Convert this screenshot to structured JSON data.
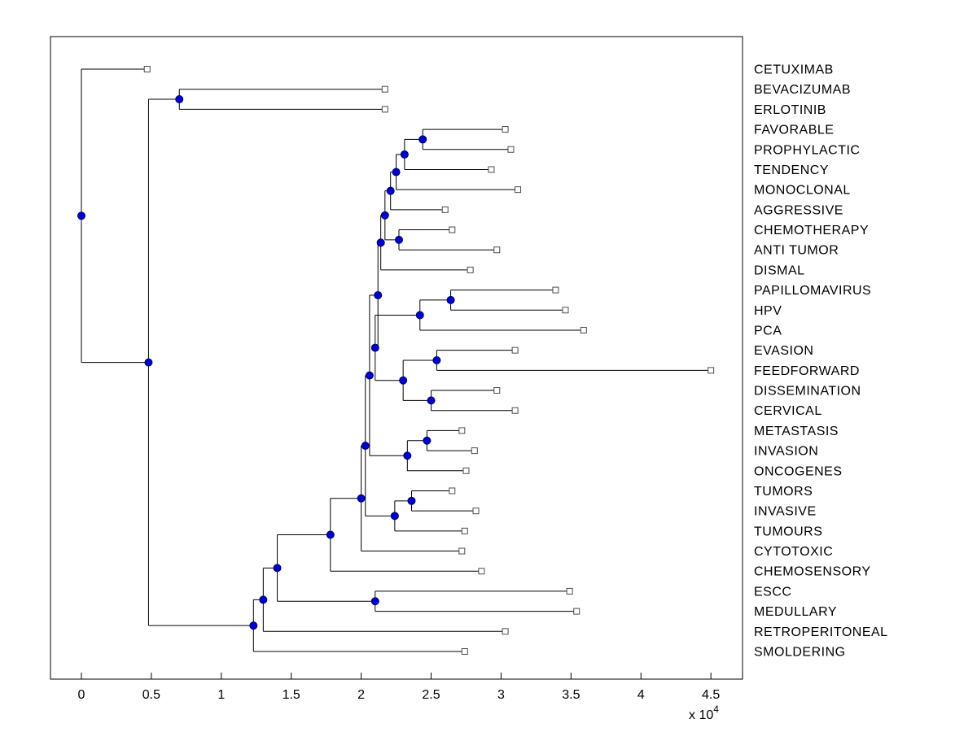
{
  "figure": {
    "background": "#ffffff",
    "kind": "matlab-phytree-dendrogram"
  },
  "chart_data": {
    "type": "dendrogram",
    "orientation": "left-to-right",
    "title": "",
    "x_axis": {
      "domain": [
        -0.221,
        4.726
      ],
      "ticks": [
        0,
        0.5,
        1,
        1.5,
        2,
        2.5,
        3,
        3.5,
        4,
        4.5
      ],
      "tick_labels": [
        "0",
        "0.5",
        "1",
        "1.5",
        "2",
        "2.5",
        "3",
        "3.5",
        "4",
        "4.5"
      ],
      "exponent_prefix": "x 10",
      "exponent": "4",
      "scale_factor": 10000
    },
    "leaf_labels": [
      "CETUXIMAB",
      "BEVACIZUMAB",
      "ERLOTINIB",
      "FAVORABLE",
      "PROPHYLACTIC",
      "TENDENCY",
      "MONOCLONAL",
      "AGGRESSIVE",
      "CHEMOTHERAPY",
      "ANTI TUMOR",
      "DISMAL",
      "PAPILLOMAVIRUS",
      "HPV",
      "PCA",
      "EVASION",
      "FEEDFORWARD",
      "DISSEMINATION",
      "CERVICAL",
      "METASTASIS",
      "INVASION",
      "ONCOGENES",
      "TUMORS",
      "INVASIVE",
      "TUMOURS",
      "CYTOTOXIC",
      "CHEMOSENSORY",
      "ESCC",
      "MEDULLARY",
      "RETROPERITONEAL",
      "SMOLDERING"
    ],
    "tree": {
      "x": 0.0,
      "children": [
        {
          "name": "CETUXIMAB",
          "x": 0.47
        },
        {
          "x": 0.48,
          "children": [
            {
              "x": 0.7,
              "children": [
                {
                  "name": "BEVACIZUMAB",
                  "x": 2.17
                },
                {
                  "name": "ERLOTINIB",
                  "x": 2.17
                }
              ]
            },
            {
              "x": 1.23,
              "children": [
                {
                  "x": 1.3,
                  "children": [
                    {
                      "x": 1.4,
                      "children": [
                        {
                          "x": 1.78,
                          "children": [
                            {
                              "x": 2.0,
                              "children": [
                                {
                                  "x": 2.03,
                                  "children": [
                                    {
                                      "x": 2.06,
                                      "children": [
                                        {
                                          "x": 2.12,
                                          "children": [
                                            {
                                              "x": 2.14,
                                              "children": [
                                                {
                                                  "x": 2.17,
                                                  "children": [
                                                    {
                                                      "x": 2.21,
                                                      "children": [
                                                        {
                                                          "x": 2.25,
                                                          "children": [
                                                            {
                                                              "x": 2.31,
                                                              "children": [
                                                                {
                                                                  "x": 2.44,
                                                                  "children": [
                                                                    {
                                                                      "name": "FAVORABLE",
                                                                      "x": 3.03
                                                                    },
                                                                    {
                                                                      "name": "PROPHYLACTIC",
                                                                      "x": 3.07
                                                                    }
                                                                  ]
                                                                },
                                                                {
                                                                  "name": "TENDENCY",
                                                                  "x": 2.93
                                                                }
                                                              ]
                                                            },
                                                            {
                                                              "name": "MONOCLONAL",
                                                              "x": 3.12
                                                            }
                                                          ]
                                                        },
                                                        {
                                                          "name": "AGGRESSIVE",
                                                          "x": 2.6
                                                        }
                                                      ]
                                                    },
                                                    {
                                                      "x": 2.27,
                                                      "children": [
                                                        {
                                                          "name": "CHEMOTHERAPY",
                                                          "x": 2.65
                                                        },
                                                        {
                                                          "name": "ANTI TUMOR",
                                                          "x": 2.97
                                                        }
                                                      ]
                                                    }
                                                  ]
                                                },
                                                {
                                                  "name": "DISMAL",
                                                  "x": 2.78
                                                }
                                              ]
                                            },
                                            {
                                              "x": 2.1,
                                              "children": [
                                                {
                                                  "x": 2.42,
                                                  "children": [
                                                    {
                                                      "x": 2.64,
                                                      "children": [
                                                        {
                                                          "name": "PAPILLOMAVIRUS",
                                                          "x": 3.39
                                                        },
                                                        {
                                                          "name": "HPV",
                                                          "x": 3.46
                                                        }
                                                      ]
                                                    },
                                                    {
                                                      "name": "PCA",
                                                      "x": 3.59
                                                    }
                                                  ]
                                                },
                                                {
                                                  "x": 2.3,
                                                  "children": [
                                                    {
                                                      "x": 2.54,
                                                      "children": [
                                                        {
                                                          "name": "EVASION",
                                                          "x": 3.1
                                                        },
                                                        {
                                                          "name": "FEEDFORWARD",
                                                          "x": 4.5
                                                        }
                                                      ]
                                                    },
                                                    {
                                                      "x": 2.5,
                                                      "children": [
                                                        {
                                                          "name": "DISSEMINATION",
                                                          "x": 2.97
                                                        },
                                                        {
                                                          "name": "CERVICAL",
                                                          "x": 3.1
                                                        }
                                                      ]
                                                    }
                                                  ]
                                                }
                                              ]
                                            }
                                          ]
                                        },
                                        {
                                          "x": 2.33,
                                          "children": [
                                            {
                                              "x": 2.47,
                                              "children": [
                                                {
                                                  "name": "METASTASIS",
                                                  "x": 2.72
                                                },
                                                {
                                                  "name": "INVASION",
                                                  "x": 2.81
                                                }
                                              ]
                                            },
                                            {
                                              "name": "ONCOGENES",
                                              "x": 2.75
                                            }
                                          ]
                                        }
                                      ]
                                    },
                                    {
                                      "x": 2.24,
                                      "children": [
                                        {
                                          "x": 2.36,
                                          "children": [
                                            {
                                              "name": "TUMORS",
                                              "x": 2.65
                                            },
                                            {
                                              "name": "INVASIVE",
                                              "x": 2.82
                                            }
                                          ]
                                        },
                                        {
                                          "name": "TUMOURS",
                                          "x": 2.74
                                        }
                                      ]
                                    }
                                  ]
                                },
                                {
                                  "name": "CYTOTOXIC",
                                  "x": 2.72
                                }
                              ]
                            },
                            {
                              "name": "CHEMOSENSORY",
                              "x": 2.86
                            }
                          ]
                        },
                        {
                          "x": 2.1,
                          "children": [
                            {
                              "name": "ESCC",
                              "x": 3.49
                            },
                            {
                              "name": "MEDULLARY",
                              "x": 3.54
                            }
                          ]
                        }
                      ]
                    },
                    {
                      "name": "RETROPERITONEAL",
                      "x": 3.03
                    }
                  ]
                },
                {
                  "name": "SMOLDERING",
                  "x": 2.74
                }
              ]
            }
          ]
        }
      ]
    },
    "style": {
      "line_color": "#000000",
      "branch_dot_fill": "#0000cc",
      "branch_dot_edge": "#000066",
      "leaf_square_fill": "#ffffff",
      "leaf_square_edge": "#4d4d4d",
      "axis_box_color": "#000000",
      "label_color": "#000000"
    },
    "legend": null,
    "grid": false
  }
}
